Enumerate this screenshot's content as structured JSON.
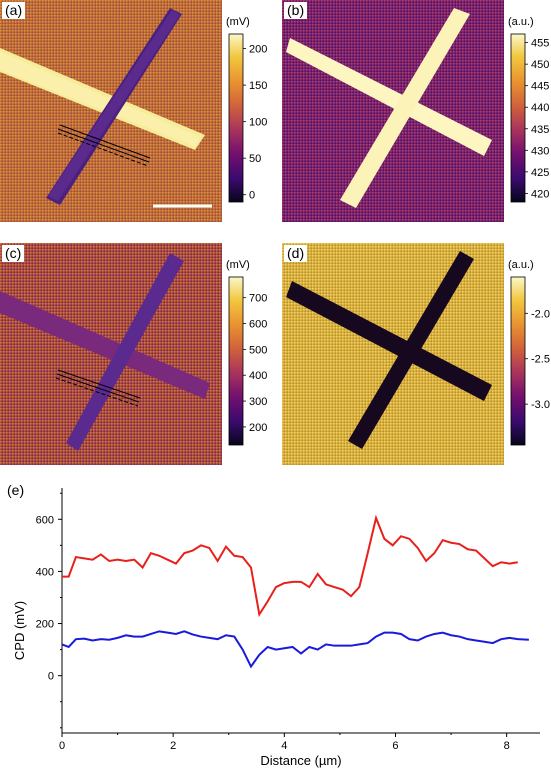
{
  "figure": {
    "panels": [
      {
        "id": "a",
        "label": "(a)",
        "colorbar": {
          "unit": "(mV)",
          "ticks": [
            "200",
            "150",
            "100",
            "50",
            "0"
          ],
          "range": [
            -10,
            220
          ]
        }
      },
      {
        "id": "b",
        "label": "(b)",
        "colorbar": {
          "unit": "(a.u.)",
          "ticks": [
            "455",
            "450",
            "445",
            "440",
            "435",
            "430",
            "425",
            "420"
          ],
          "range": [
            418,
            457
          ]
        }
      },
      {
        "id": "c",
        "label": "(c)",
        "colorbar": {
          "unit": "(mV)",
          "ticks": [
            "700",
            "600",
            "500",
            "400",
            "300",
            "200"
          ],
          "range": [
            130,
            780
          ]
        }
      },
      {
        "id": "d",
        "label": "(d)",
        "colorbar": {
          "unit": "(a.u.)",
          "ticks": [
            "-2.0",
            "-2.5",
            "-3.0"
          ],
          "range": [
            -3.45,
            -1.6
          ]
        }
      }
    ],
    "colormap": [
      "#06061a",
      "#3a0a6e",
      "#74106e",
      "#a8345c",
      "#d0603c",
      "#e89030",
      "#f2c63c",
      "#fbf7c8"
    ]
  },
  "chart_data": {
    "label": "(e)",
    "type": "line",
    "xlabel": "Distance (µm)",
    "ylabel": "CPD (mV)",
    "xlim": [
      0,
      8.6
    ],
    "ylim": [
      -220,
      720
    ],
    "xticks": [
      0,
      2,
      4,
      6,
      8
    ],
    "yticks": [
      0,
      200,
      400,
      600
    ],
    "series": [
      {
        "color": "#e8201c",
        "x": [
          0,
          0.12,
          0.25,
          0.4,
          0.55,
          0.7,
          0.85,
          1.0,
          1.15,
          1.3,
          1.45,
          1.6,
          1.75,
          1.9,
          2.05,
          2.2,
          2.35,
          2.5,
          2.65,
          2.8,
          2.95,
          3.1,
          3.25,
          3.4,
          3.55,
          3.7,
          3.85,
          4.0,
          4.15,
          4.3,
          4.45,
          4.6,
          4.75,
          4.9,
          5.05,
          5.2,
          5.35,
          5.5,
          5.65,
          5.8,
          5.95,
          6.1,
          6.25,
          6.4,
          6.55,
          6.7,
          6.85,
          7.0,
          7.15,
          7.3,
          7.45,
          7.6,
          7.75,
          7.9,
          8.05,
          8.2
        ],
        "y": [
          380,
          380,
          455,
          450,
          445,
          465,
          440,
          445,
          440,
          445,
          415,
          470,
          460,
          445,
          430,
          470,
          480,
          500,
          490,
          440,
          495,
          460,
          455,
          415,
          235,
          285,
          340,
          355,
          360,
          360,
          340,
          390,
          350,
          340,
          330,
          305,
          340,
          470,
          605,
          525,
          500,
          535,
          525,
          490,
          440,
          470,
          520,
          510,
          505,
          485,
          480,
          450,
          420,
          435,
          430,
          435
        ]
      },
      {
        "color": "#1a1adc",
        "x": [
          0,
          0.12,
          0.25,
          0.4,
          0.55,
          0.7,
          0.85,
          1.0,
          1.15,
          1.3,
          1.45,
          1.6,
          1.75,
          1.9,
          2.05,
          2.2,
          2.35,
          2.5,
          2.65,
          2.8,
          2.95,
          3.1,
          3.25,
          3.4,
          3.55,
          3.7,
          3.85,
          4.0,
          4.15,
          4.3,
          4.45,
          4.6,
          4.75,
          4.9,
          5.05,
          5.2,
          5.35,
          5.5,
          5.65,
          5.8,
          5.95,
          6.1,
          6.25,
          6.4,
          6.55,
          6.7,
          6.85,
          7.0,
          7.15,
          7.3,
          7.45,
          7.6,
          7.75,
          7.9,
          8.05,
          8.2,
          8.4
        ],
        "y": [
          120,
          110,
          140,
          142,
          135,
          140,
          138,
          145,
          155,
          150,
          150,
          160,
          170,
          165,
          160,
          170,
          158,
          150,
          145,
          140,
          155,
          150,
          100,
          35,
          80,
          110,
          100,
          105,
          110,
          85,
          110,
          100,
          120,
          115,
          115,
          115,
          120,
          125,
          150,
          165,
          165,
          160,
          140,
          135,
          150,
          160,
          165,
          155,
          150,
          140,
          135,
          130,
          125,
          140,
          145,
          140,
          138
        ]
      }
    ]
  }
}
